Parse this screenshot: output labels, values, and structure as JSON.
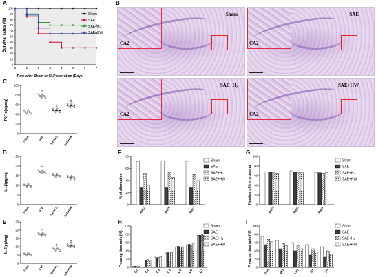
{
  "panels": {
    "A": {
      "letter": "A",
      "ylabel": "Survival rates (%)",
      "xlabel": "Time after Sham or CLP  operation (Days)",
      "legend": [
        "Sham",
        "SAE",
        "SAE+H₂",
        "SAE+HW"
      ]
    },
    "B": {
      "letter": "B",
      "tiles": [
        {
          "label": "Sham",
          "region": "CA2"
        },
        {
          "label": "SAE",
          "region": "CA2"
        },
        {
          "label": "SAE+H₂",
          "region": "CA2"
        },
        {
          "label": "SAE+HW",
          "region": "CA2"
        }
      ]
    },
    "C": {
      "letter": "C",
      "ylabel": "TNF-α(pg/mg)"
    },
    "D": {
      "letter": "D",
      "ylabel": "IL-1β(pg/mg)"
    },
    "E": {
      "letter": "E",
      "ylabel": "IL-6(pg/mg)"
    },
    "F": {
      "letter": "F",
      "ylabel": "% of alternation",
      "legend": [
        "Sham",
        "SAE",
        "SAE+H₂",
        "SAE+HW"
      ]
    },
    "G": {
      "letter": "G",
      "ylabel": "Number of line crossing",
      "legend": [
        "Sham",
        "SAE",
        "SAE+H₂",
        "SAE+HW"
      ]
    },
    "H": {
      "letter": "H",
      "ylabel": "Freezing time ratio (%)",
      "legend": [
        "Sham",
        "SAE",
        "SAE+H₂",
        "SAE+HW"
      ]
    },
    "I": {
      "letter": "I",
      "ylabel": "Freezing time ratio (%)",
      "legend": [
        "Sham",
        "SAE",
        "SAE+H₂",
        "SAE+HW"
      ]
    }
  },
  "colors": {
    "sham": "#111111",
    "sae": "#c8102e",
    "h2": "#2ca02c",
    "hw": "#3a3fa0"
  },
  "chart_data": [
    {
      "id": "A",
      "type": "line",
      "categories": [
        0,
        1,
        2,
        3,
        4,
        5,
        6,
        7
      ],
      "ylim": [
        0,
        100
      ],
      "yticks": [
        "0",
        "10",
        "20",
        "30",
        "40",
        "50",
        "60",
        "70",
        "80",
        "90",
        "100"
      ],
      "xticks": [
        "0",
        "1",
        "2",
        "3",
        "4",
        "5",
        "6",
        "7"
      ],
      "series": [
        {
          "name": "Sham",
          "values": [
            100,
            100,
            100,
            100,
            100,
            100,
            100,
            100
          ]
        },
        {
          "name": "SAE",
          "values": [
            100,
            85,
            55,
            40,
            30,
            30,
            30,
            30
          ]
        },
        {
          "name": "SAE+H₂",
          "values": [
            100,
            90,
            75,
            70,
            70,
            70,
            70,
            70
          ]
        },
        {
          "name": "SAE+HW",
          "values": [
            100,
            88,
            65,
            55,
            55,
            55,
            55,
            55
          ]
        }
      ]
    },
    {
      "id": "C",
      "type": "scatter",
      "categories": [
        "Sham",
        "SAE",
        "SAE+H₂",
        "SAE+HW"
      ],
      "ylim": [
        0,
        100
      ],
      "yticks": [
        "0",
        "20",
        "40",
        "60",
        "80",
        "100"
      ],
      "values": [
        45,
        78,
        48,
        58
      ],
      "marks": [
        "",
        "*",
        "#",
        "#"
      ]
    },
    {
      "id": "D",
      "type": "scatter",
      "categories": [
        "Sham",
        "SAE",
        "SAE+H₂",
        "SAE+HW"
      ],
      "ylim": [
        0,
        25
      ],
      "yticks": [
        "0",
        "5",
        "10",
        "15",
        "20",
        "25"
      ],
      "values": [
        10,
        17,
        15,
        14
      ],
      "marks": [
        "",
        "*",
        "",
        ""
      ]
    },
    {
      "id": "E",
      "type": "scatter",
      "categories": [
        "Sham",
        "SAE",
        "SAE+H₂",
        "SAE+HW"
      ],
      "ylim": [
        0,
        25
      ],
      "yticks": [
        "0",
        "5",
        "10",
        "15",
        "20",
        "25"
      ],
      "values": [
        5.5,
        17.5,
        8.5,
        10.5
      ],
      "marks": [
        "",
        "*",
        "#",
        "#"
      ]
    },
    {
      "id": "F",
      "type": "bar",
      "categories": [
        "Day3",
        "Day5",
        "Day7"
      ],
      "ylim": [
        0,
        80
      ],
      "yticks": [
        "0",
        "20",
        "40",
        "60",
        "80"
      ],
      "series": [
        {
          "name": "Sham",
          "values": [
            72,
            73,
            72
          ]
        },
        {
          "name": "SAE",
          "values": [
            28,
            28,
            28
          ]
        },
        {
          "name": "SAE+H₂",
          "values": [
            52,
            53,
            50
          ]
        },
        {
          "name": "SAE+HW",
          "values": [
            33,
            45,
            40
          ]
        }
      ]
    },
    {
      "id": "G",
      "type": "bar",
      "categories": [
        "Day3",
        "Day5",
        "Day7"
      ],
      "ylim": [
        0,
        100
      ],
      "yticks": [
        "0",
        "20",
        "40",
        "60",
        "80",
        "100"
      ],
      "series": [
        {
          "name": "Sham",
          "values": [
            68,
            70,
            67
          ]
        },
        {
          "name": "SAE",
          "values": [
            67,
            68,
            66
          ]
        },
        {
          "name": "SAE+H₂",
          "values": [
            66,
            67,
            65
          ]
        },
        {
          "name": "SAE+HW",
          "values": [
            65,
            66,
            66
          ]
        }
      ]
    },
    {
      "id": "H",
      "type": "bar",
      "categories": [
        "D1",
        "D2",
        "D3",
        "D4",
        "D5",
        "D6",
        "D7"
      ],
      "ylim": [
        0,
        100
      ],
      "yticks": [
        "0",
        "20",
        "40",
        "60",
        "80",
        "100"
      ],
      "series": [
        {
          "name": "Sham",
          "values": [
            2,
            18,
            25,
            35,
            50,
            55,
            78
          ]
        },
        {
          "name": "SAE",
          "values": [
            3,
            17,
            24,
            36,
            51,
            56,
            78
          ]
        },
        {
          "name": "SAE+H₂",
          "values": [
            2,
            19,
            25,
            37,
            49,
            55,
            79
          ]
        },
        {
          "name": "SAE+HW",
          "values": [
            3,
            18,
            26,
            36,
            50,
            57,
            78
          ]
        }
      ]
    },
    {
      "id": "I",
      "type": "bar",
      "categories": [
        "24h",
        "48h",
        "72h",
        "5d",
        "7d"
      ],
      "ylim": [
        0,
        100
      ],
      "yticks": [
        "0",
        "20",
        "40",
        "60",
        "80",
        "100"
      ],
      "series": [
        {
          "name": "Sham",
          "values": [
            75,
            65,
            60,
            55,
            50
          ]
        },
        {
          "name": "SAE",
          "values": [
            55,
            45,
            40,
            30,
            25
          ]
        },
        {
          "name": "SAE+H₂",
          "values": [
            68,
            58,
            52,
            45,
            40
          ]
        },
        {
          "name": "SAE+HW",
          "values": [
            62,
            52,
            45,
            38,
            32
          ]
        }
      ]
    }
  ]
}
